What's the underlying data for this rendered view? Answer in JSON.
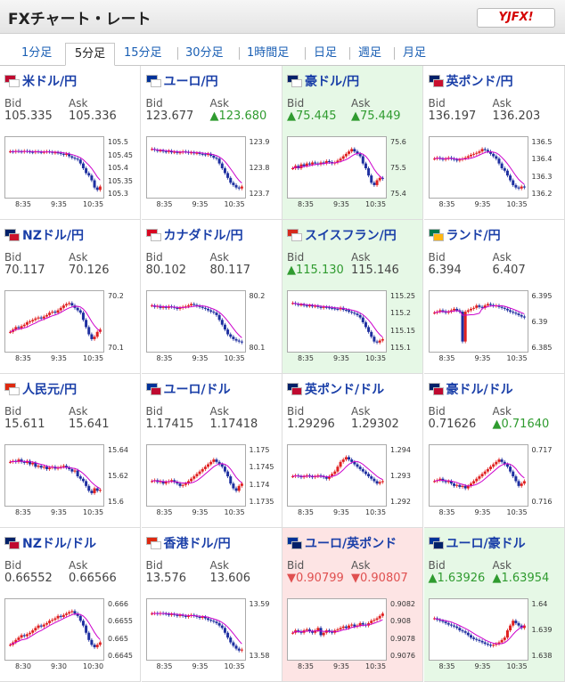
{
  "header": {
    "title": "FXチャート・レート",
    "logo_text": "YJFX!"
  },
  "tabs": [
    {
      "label": "1分足"
    },
    {
      "label": "5分足",
      "active": true
    },
    {
      "label": "15分足"
    },
    {
      "label": "30分足"
    },
    {
      "label": "1時間足"
    },
    {
      "label": "日足"
    },
    {
      "label": "週足"
    },
    {
      "label": "月足"
    }
  ],
  "labels": {
    "bid": "Bid",
    "ask": "Ask"
  },
  "colors": {
    "up": "#2f9b2f",
    "down": "#e05050",
    "pair_text": "#1a3fa8",
    "green_bg": "#e6f8e6",
    "red_bg": "#fde4e4",
    "candle_up": "#e02020",
    "candle_down": "#1e2fa0",
    "ma_line": "#cc00cc"
  },
  "pairs": [
    {
      "name": "米ドル/円",
      "bid": "105.335",
      "ask": "105.336",
      "bid_dir": "",
      "ask_dir": "",
      "highlight": "",
      "flags": [
        "#bf0a30",
        "#ffffff"
      ],
      "yticks": [
        "105.5",
        "105.45",
        "105.4",
        "105.35",
        "105.3"
      ],
      "xticks": [
        "8:35",
        "9:35",
        "10:35"
      ],
      "shape": [
        0.85,
        0.84,
        0.86,
        0.85,
        0.84,
        0.86,
        0.85,
        0.84,
        0.83,
        0.85,
        0.84,
        0.83,
        0.84,
        0.85,
        0.84,
        0.82,
        0.83,
        0.82,
        0.8,
        0.78,
        0.8,
        0.75,
        0.72,
        0.7,
        0.68,
        0.6,
        0.5,
        0.4,
        0.35,
        0.25,
        0.1,
        0.05,
        0.12
      ]
    },
    {
      "name": "ユーロ/円",
      "bid": "123.677",
      "ask": "▲123.680",
      "bid_dir": "",
      "ask_dir": "up",
      "highlight": "",
      "flags": [
        "#003399",
        "#ffffff"
      ],
      "yticks": [
        "123.9",
        "123.8",
        "123.7"
      ],
      "xticks": [
        "8:35",
        "9:35",
        "10:35"
      ],
      "shape": [
        0.9,
        0.88,
        0.86,
        0.87,
        0.85,
        0.84,
        0.86,
        0.83,
        0.84,
        0.82,
        0.83,
        0.85,
        0.84,
        0.82,
        0.83,
        0.81,
        0.82,
        0.8,
        0.79,
        0.78,
        0.8,
        0.76,
        0.72,
        0.7,
        0.6,
        0.5,
        0.4,
        0.3,
        0.2,
        0.15,
        0.1,
        0.08,
        0.12
      ]
    },
    {
      "name": "豪ドル/円",
      "bid": "▲75.445",
      "ask": "▲75.449",
      "bid_dir": "up",
      "ask_dir": "up",
      "highlight": "green",
      "flags": [
        "#012169",
        "#ffffff"
      ],
      "yticks": [
        "75.6",
        "75.5",
        "75.4"
      ],
      "xticks": [
        "8:35",
        "9:35",
        "10:35"
      ],
      "shape": [
        0.5,
        0.55,
        0.5,
        0.58,
        0.55,
        0.6,
        0.58,
        0.62,
        0.6,
        0.58,
        0.62,
        0.6,
        0.65,
        0.63,
        0.6,
        0.62,
        0.66,
        0.7,
        0.75,
        0.8,
        0.85,
        0.9,
        0.85,
        0.8,
        0.75,
        0.6,
        0.5,
        0.35,
        0.2,
        0.15,
        0.25,
        0.3,
        0.28
      ]
    },
    {
      "name": "英ポンド/円",
      "bid": "136.197",
      "ask": "136.203",
      "bid_dir": "",
      "ask_dir": "",
      "highlight": "",
      "flags": [
        "#012169",
        "#c8102e"
      ],
      "yticks": [
        "136.5",
        "136.4",
        "136.3",
        "136.2"
      ],
      "xticks": [
        "8:35",
        "9:35",
        "10:35"
      ],
      "shape": [
        0.7,
        0.72,
        0.7,
        0.68,
        0.7,
        0.72,
        0.7,
        0.68,
        0.66,
        0.68,
        0.7,
        0.72,
        0.75,
        0.78,
        0.8,
        0.82,
        0.85,
        0.9,
        0.88,
        0.85,
        0.8,
        0.75,
        0.7,
        0.6,
        0.5,
        0.45,
        0.35,
        0.25,
        0.15,
        0.1,
        0.08,
        0.12,
        0.1
      ]
    },
    {
      "name": "NZドル/円",
      "bid": "70.117",
      "ask": "70.126",
      "bid_dir": "",
      "ask_dir": "",
      "highlight": "",
      "flags": [
        "#012169",
        "#cc142b"
      ],
      "yticks": [
        "70.2",
        "70.1"
      ],
      "xticks": [
        "8:35",
        "9:35",
        "10:35"
      ],
      "shape": [
        0.3,
        0.35,
        0.4,
        0.38,
        0.42,
        0.45,
        0.5,
        0.52,
        0.55,
        0.58,
        0.6,
        0.58,
        0.62,
        0.65,
        0.7,
        0.72,
        0.7,
        0.75,
        0.8,
        0.85,
        0.88,
        0.9,
        0.85,
        0.8,
        0.75,
        0.7,
        0.55,
        0.4,
        0.25,
        0.15,
        0.2,
        0.3,
        0.35
      ]
    },
    {
      "name": "カナダドル/円",
      "bid": "80.102",
      "ask": "80.117",
      "bid_dir": "",
      "ask_dir": "",
      "highlight": "",
      "flags": [
        "#d80621",
        "#ffffff"
      ],
      "yticks": [
        "80.2",
        "80.1"
      ],
      "xticks": [
        "8:35",
        "9:35",
        "10:35"
      ],
      "shape": [
        0.85,
        0.82,
        0.84,
        0.8,
        0.82,
        0.8,
        0.83,
        0.82,
        0.8,
        0.78,
        0.8,
        0.82,
        0.83,
        0.85,
        0.88,
        0.86,
        0.84,
        0.82,
        0.8,
        0.78,
        0.75,
        0.72,
        0.7,
        0.65,
        0.55,
        0.45,
        0.35,
        0.25,
        0.2,
        0.15,
        0.12,
        0.1,
        0.08
      ]
    },
    {
      "name": "スイスフラン/円",
      "bid": "▲115.130",
      "ask": "115.146",
      "bid_dir": "up",
      "ask_dir": "",
      "highlight": "green",
      "flags": [
        "#d52b1e",
        "#ffffff"
      ],
      "yticks": [
        "115.25",
        "115.2",
        "115.15",
        "115.1"
      ],
      "xticks": [
        "8:35",
        "9:35",
        "10:35"
      ],
      "shape": [
        0.9,
        0.88,
        0.86,
        0.87,
        0.85,
        0.84,
        0.85,
        0.83,
        0.84,
        0.82,
        0.8,
        0.82,
        0.81,
        0.8,
        0.79,
        0.78,
        0.77,
        0.8,
        0.76,
        0.75,
        0.72,
        0.7,
        0.68,
        0.65,
        0.6,
        0.5,
        0.4,
        0.3,
        0.2,
        0.1,
        0.08,
        0.12,
        0.15
      ]
    },
    {
      "name": "ランド/円",
      "bid": "6.394",
      "ask": "6.407",
      "bid_dir": "",
      "ask_dir": "",
      "highlight": "",
      "flags": [
        "#007a4d",
        "#ffb612"
      ],
      "yticks": [
        "6.395",
        "6.39",
        "6.385"
      ],
      "xticks": [
        "8:35",
        "9:35",
        "10:35"
      ],
      "shape": [
        0.7,
        0.72,
        0.75,
        0.73,
        0.7,
        0.72,
        0.75,
        0.78,
        0.75,
        0.72,
        0.1,
        0.72,
        0.75,
        0.78,
        0.8,
        0.85,
        0.82,
        0.8,
        0.85,
        0.88,
        0.86,
        0.84,
        0.85,
        0.82,
        0.8,
        0.78,
        0.75,
        0.72,
        0.7,
        0.68,
        0.65,
        0.62,
        0.6
      ]
    },
    {
      "name": "人民元/円",
      "bid": "15.611",
      "ask": "15.641",
      "bid_dir": "",
      "ask_dir": "",
      "highlight": "",
      "flags": [
        "#de2910",
        "#ffffff"
      ],
      "yticks": [
        "15.64",
        "15.62",
        "15.6"
      ],
      "xticks": [
        "8:35",
        "9:35",
        "10:35"
      ],
      "shape": [
        0.8,
        0.82,
        0.8,
        0.85,
        0.8,
        0.78,
        0.82,
        0.75,
        0.78,
        0.7,
        0.72,
        0.68,
        0.7,
        0.65,
        0.68,
        0.7,
        0.66,
        0.68,
        0.7,
        0.72,
        0.68,
        0.65,
        0.6,
        0.62,
        0.5,
        0.45,
        0.4,
        0.3,
        0.2,
        0.15,
        0.25,
        0.2,
        0.22
      ]
    },
    {
      "name": "ユーロ/ドル",
      "bid": "1.17415",
      "ask": "1.17418",
      "bid_dir": "",
      "ask_dir": "",
      "highlight": "",
      "flags": [
        "#003399",
        "#bf0a30"
      ],
      "yticks": [
        "1.175",
        "1.1745",
        "1.174",
        "1.1735"
      ],
      "xticks": [
        "8:35",
        "9:35",
        "10:35"
      ],
      "shape": [
        0.4,
        0.42,
        0.38,
        0.4,
        0.35,
        0.38,
        0.4,
        0.42,
        0.38,
        0.35,
        0.3,
        0.32,
        0.35,
        0.4,
        0.45,
        0.5,
        0.55,
        0.6,
        0.65,
        0.7,
        0.75,
        0.8,
        0.85,
        0.8,
        0.75,
        0.7,
        0.6,
        0.5,
        0.35,
        0.25,
        0.2,
        0.3,
        0.35
      ]
    },
    {
      "name": "英ポンド/ドル",
      "bid": "1.29296",
      "ask": "1.29302",
      "bid_dir": "",
      "ask_dir": "",
      "highlight": "",
      "flags": [
        "#012169",
        "#bf0a30"
      ],
      "yticks": [
        "1.294",
        "1.293",
        "1.292"
      ],
      "xticks": [
        "8:35",
        "9:35",
        "10:35"
      ],
      "shape": [
        0.5,
        0.52,
        0.5,
        0.48,
        0.5,
        0.52,
        0.5,
        0.48,
        0.5,
        0.52,
        0.5,
        0.48,
        0.45,
        0.5,
        0.55,
        0.6,
        0.7,
        0.8,
        0.85,
        0.9,
        0.85,
        0.8,
        0.75,
        0.7,
        0.65,
        0.6,
        0.55,
        0.5,
        0.45,
        0.4,
        0.35,
        0.38,
        0.4
      ]
    },
    {
      "name": "豪ドル/ドル",
      "bid": "0.71626",
      "ask": "▲0.71640",
      "bid_dir": "",
      "ask_dir": "up",
      "highlight": "",
      "flags": [
        "#012169",
        "#bf0a30"
      ],
      "yticks": [
        "0.717",
        "0.716"
      ],
      "xticks": [
        "8:35",
        "9:35",
        "10:35"
      ],
      "shape": [
        0.4,
        0.42,
        0.45,
        0.4,
        0.38,
        0.4,
        0.35,
        0.3,
        0.32,
        0.28,
        0.3,
        0.25,
        0.3,
        0.35,
        0.4,
        0.45,
        0.5,
        0.55,
        0.6,
        0.65,
        0.7,
        0.75,
        0.8,
        0.85,
        0.8,
        0.75,
        0.7,
        0.6,
        0.5,
        0.4,
        0.3,
        0.35,
        0.4
      ]
    },
    {
      "name": "NZドル/ドル",
      "bid": "0.66552",
      "ask": "0.66566",
      "bid_dir": "",
      "ask_dir": "",
      "highlight": "",
      "flags": [
        "#012169",
        "#bf0a30"
      ],
      "yticks": [
        "0.666",
        "0.6655",
        "0.665",
        "0.6645"
      ],
      "xticks": [
        "8:30",
        "9:30",
        "10:30"
      ],
      "shape": [
        0.2,
        0.25,
        0.3,
        0.35,
        0.4,
        0.38,
        0.42,
        0.45,
        0.5,
        0.55,
        0.6,
        0.58,
        0.62,
        0.65,
        0.7,
        0.72,
        0.75,
        0.8,
        0.78,
        0.82,
        0.85,
        0.88,
        0.9,
        0.85,
        0.8,
        0.7,
        0.6,
        0.45,
        0.3,
        0.2,
        0.15,
        0.2,
        0.25
      ]
    },
    {
      "name": "香港ドル/円",
      "bid": "13.576",
      "ask": "13.606",
      "bid_dir": "",
      "ask_dir": "",
      "highlight": "",
      "flags": [
        "#de2910",
        "#ffffff"
      ],
      "yticks": [
        "13.59",
        "13.58"
      ],
      "xticks": [
        "8:35",
        "9:35",
        "10:35"
      ],
      "shape": [
        0.85,
        0.86,
        0.84,
        0.86,
        0.85,
        0.84,
        0.82,
        0.84,
        0.82,
        0.8,
        0.82,
        0.8,
        0.78,
        0.8,
        0.82,
        0.8,
        0.78,
        0.76,
        0.78,
        0.75,
        0.72,
        0.7,
        0.68,
        0.65,
        0.6,
        0.55,
        0.45,
        0.35,
        0.25,
        0.18,
        0.12,
        0.08,
        0.1
      ]
    },
    {
      "name": "ユーロ/英ポンド",
      "bid": "▼0.90799",
      "ask": "▼0.90807",
      "bid_dir": "down",
      "ask_dir": "down",
      "highlight": "red",
      "flags": [
        "#003399",
        "#012169"
      ],
      "yticks": [
        "0.9082",
        "0.908",
        "0.9078",
        "0.9076"
      ],
      "xticks": [
        "8:35",
        "9:35",
        "10:35"
      ],
      "shape": [
        0.45,
        0.5,
        0.48,
        0.45,
        0.5,
        0.52,
        0.48,
        0.45,
        0.5,
        0.55,
        0.4,
        0.45,
        0.5,
        0.48,
        0.45,
        0.5,
        0.52,
        0.55,
        0.58,
        0.55,
        0.6,
        0.62,
        0.58,
        0.6,
        0.65,
        0.62,
        0.6,
        0.65,
        0.7,
        0.72,
        0.75,
        0.8,
        0.85
      ]
    },
    {
      "name": "ユーロ/豪ドル",
      "bid": "▲1.63926",
      "ask": "▲1.63954",
      "bid_dir": "up",
      "ask_dir": "up",
      "highlight": "green",
      "flags": [
        "#003399",
        "#012169"
      ],
      "yticks": [
        "1.64",
        "1.639",
        "1.638"
      ],
      "xticks": [
        "8:35",
        "9:35",
        "10:35"
      ],
      "shape": [
        0.75,
        0.72,
        0.7,
        0.68,
        0.65,
        0.62,
        0.6,
        0.58,
        0.55,
        0.5,
        0.48,
        0.45,
        0.4,
        0.35,
        0.32,
        0.3,
        0.28,
        0.25,
        0.22,
        0.2,
        0.18,
        0.2,
        0.22,
        0.25,
        0.3,
        0.35,
        0.5,
        0.6,
        0.7,
        0.65,
        0.6,
        0.55,
        0.6
      ]
    }
  ]
}
